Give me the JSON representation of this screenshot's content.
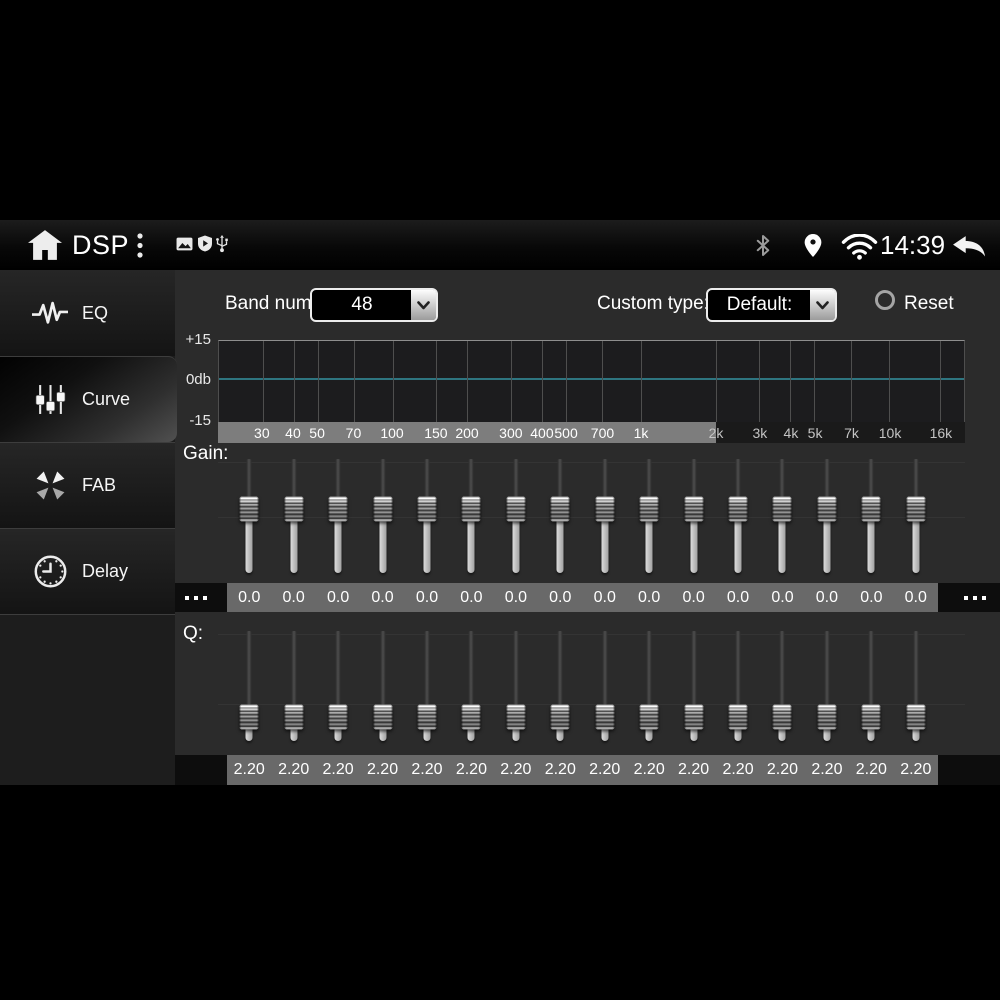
{
  "status_bar": {
    "title": "DSP",
    "time": "14:39"
  },
  "sidebar": {
    "items": [
      {
        "label": "EQ",
        "icon": "eq-waveform-icon",
        "selected": false
      },
      {
        "label": "Curve",
        "icon": "curve-sliders-icon",
        "selected": true
      },
      {
        "label": "FAB",
        "icon": "fab-arrows-icon",
        "selected": false
      },
      {
        "label": "Delay",
        "icon": "delay-clock-icon",
        "selected": false
      }
    ]
  },
  "controls": {
    "band_num_label": "Band num:",
    "band_num_value": "48",
    "custom_type_label": "Custom type:",
    "custom_type_value": "Default:",
    "reset_label": "Reset"
  },
  "eq_graph": {
    "y_labels": [
      "+15",
      "0db",
      "-15"
    ],
    "freq_min_hz": 20,
    "freq_max_hz": 20000,
    "strip_split_hz": 2000,
    "curve_value_db": 0,
    "freq_ticks": [
      {
        "label": "30",
        "hz": 30
      },
      {
        "label": "40",
        "hz": 40
      },
      {
        "label": "50",
        "hz": 50
      },
      {
        "label": "70",
        "hz": 70
      },
      {
        "label": "100",
        "hz": 100
      },
      {
        "label": "150",
        "hz": 150
      },
      {
        "label": "200",
        "hz": 200
      },
      {
        "label": "300",
        "hz": 300
      },
      {
        "label": "400",
        "hz": 400
      },
      {
        "label": "500",
        "hz": 500
      },
      {
        "label": "700",
        "hz": 700
      },
      {
        "label": "1k",
        "hz": 1000
      },
      {
        "label": "2k",
        "hz": 2000
      },
      {
        "label": "3k",
        "hz": 3000
      },
      {
        "label": "4k",
        "hz": 4000
      },
      {
        "label": "5k",
        "hz": 5000
      },
      {
        "label": "7k",
        "hz": 7000
      },
      {
        "label": "10k",
        "hz": 10000
      },
      {
        "label": "16k",
        "hz": 16000
      }
    ]
  },
  "gain": {
    "label": "Gain:",
    "slider_percent": 43,
    "values": [
      "0.0",
      "0.0",
      "0.0",
      "0.0",
      "0.0",
      "0.0",
      "0.0",
      "0.0",
      "0.0",
      "0.0",
      "0.0",
      "0.0",
      "0.0",
      "0.0",
      "0.0",
      "0.0"
    ]
  },
  "q": {
    "label": "Q:",
    "slider_percent": 77,
    "values": [
      "2.20",
      "2.20",
      "2.20",
      "2.20",
      "2.20",
      "2.20",
      "2.20",
      "2.20",
      "2.20",
      "2.20",
      "2.20",
      "2.20",
      "2.20",
      "2.20",
      "2.20",
      "2.20"
    ]
  },
  "colors": {
    "zero_line": "#2e7580",
    "axis_strip_light": "#7d7d7d",
    "axis_strip_dark": "#1a1a1a",
    "value_strip": "#696969"
  }
}
